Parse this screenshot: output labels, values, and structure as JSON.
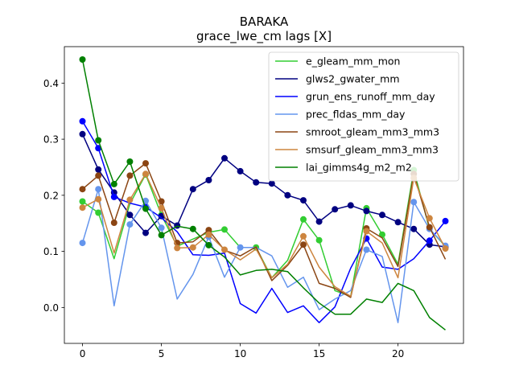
{
  "chart_data": {
    "type": "line",
    "title": "BARAKA",
    "subtitle": "grace_lwe_cm lags [X]",
    "xlabel": "",
    "ylabel": "",
    "xlim": [
      -1.15,
      24.15
    ],
    "ylim": [
      -0.064,
      0.465
    ],
    "xticks": [
      0,
      5,
      10,
      15,
      20
    ],
    "yticks": [
      0.0,
      0.1,
      0.2,
      0.3,
      0.4
    ],
    "ytick_labels": [
      "0.0",
      "0.1",
      "0.2",
      "0.3",
      "0.4"
    ],
    "grid": false,
    "legend_position": "top-right",
    "x": [
      0,
      1,
      2,
      3,
      4,
      5,
      6,
      7,
      8,
      9,
      10,
      11,
      12,
      13,
      14,
      15,
      16,
      17,
      18,
      19,
      20,
      21,
      22,
      23
    ],
    "series": [
      {
        "name": "e_gleam_mm_mon",
        "color": "#32cd32",
        "values": [
          0.189,
          0.169,
          0.087,
          0.185,
          0.237,
          0.165,
          0.109,
          0.122,
          0.134,
          0.139,
          0.107,
          0.107,
          0.053,
          0.084,
          0.157,
          0.12,
          0.03,
          0.02,
          0.177,
          0.13,
          0.077,
          0.245,
          0.14,
          0.109
        ],
        "markers": [
          0,
          1,
          4,
          5,
          9,
          11,
          14,
          15,
          18,
          19,
          21
        ]
      },
      {
        "name": "glws2_gwater_mm",
        "color": "#000080",
        "values": [
          0.309,
          0.246,
          0.205,
          0.165,
          0.133,
          0.163,
          0.146,
          0.211,
          0.227,
          0.266,
          0.243,
          0.223,
          0.221,
          0.2,
          0.191,
          0.153,
          0.175,
          0.182,
          0.172,
          0.165,
          0.152,
          0.14,
          0.112,
          0.108
        ],
        "markers": "all"
      },
      {
        "name": "grun_ens_runoff_mm_day",
        "color": "#0000ff",
        "values": [
          0.332,
          0.284,
          0.197,
          0.186,
          0.179,
          0.16,
          0.135,
          0.094,
          0.093,
          0.097,
          0.007,
          -0.01,
          0.034,
          -0.009,
          0.003,
          -0.027,
          0.001,
          0.07,
          0.123,
          0.072,
          0.068,
          0.087,
          0.119,
          0.154
        ],
        "markers": [
          0,
          1,
          2,
          4,
          18,
          22,
          23
        ]
      },
      {
        "name": "prec_fldas_mm_day",
        "color": "#6495ed",
        "values": [
          0.115,
          0.211,
          0.003,
          0.148,
          0.19,
          0.142,
          0.015,
          0.059,
          0.126,
          0.054,
          0.107,
          0.107,
          0.092,
          0.036,
          0.054,
          -0.004,
          0.015,
          0.03,
          0.103,
          0.091,
          -0.027,
          0.188,
          0.14,
          0.11
        ],
        "markers": [
          0,
          1,
          3,
          4,
          5,
          8,
          10,
          18,
          21,
          22,
          23
        ]
      },
      {
        "name": "smroot_gleam_mm3_mm3",
        "color": "#8b4513",
        "values": [
          0.211,
          0.235,
          0.151,
          0.235,
          0.257,
          0.189,
          0.115,
          0.117,
          0.138,
          0.102,
          0.092,
          0.108,
          0.048,
          0.075,
          0.112,
          0.043,
          0.034,
          0.018,
          0.141,
          0.124,
          0.073,
          0.238,
          0.143,
          0.086
        ],
        "markers": [
          0,
          1,
          2,
          3,
          4,
          5,
          6,
          8,
          14,
          18,
          21,
          22
        ]
      },
      {
        "name": "smsurf_gleam_mm3_mm3",
        "color": "#cd853f",
        "values": [
          0.178,
          0.193,
          0.097,
          0.192,
          0.238,
          0.177,
          0.106,
          0.107,
          0.13,
          0.103,
          0.085,
          0.104,
          0.053,
          0.077,
          0.127,
          0.072,
          0.037,
          0.02,
          0.136,
          0.115,
          0.053,
          0.231,
          0.159,
          0.105
        ],
        "markers": [
          0,
          1,
          3,
          4,
          5,
          6,
          7,
          8,
          9,
          14,
          18,
          21,
          22,
          23
        ]
      },
      {
        "name": "lai_gimms4g_m2_m2",
        "color": "#008000",
        "values": [
          0.442,
          0.298,
          0.22,
          0.26,
          0.176,
          0.129,
          0.145,
          0.14,
          0.111,
          0.09,
          0.058,
          0.066,
          0.068,
          0.064,
          0.035,
          0.008,
          -0.012,
          -0.012,
          0.015,
          0.009,
          0.043,
          0.03,
          -0.018,
          -0.04
        ],
        "markers": [
          0,
          1,
          2,
          3,
          4,
          5,
          7,
          8
        ]
      }
    ]
  }
}
